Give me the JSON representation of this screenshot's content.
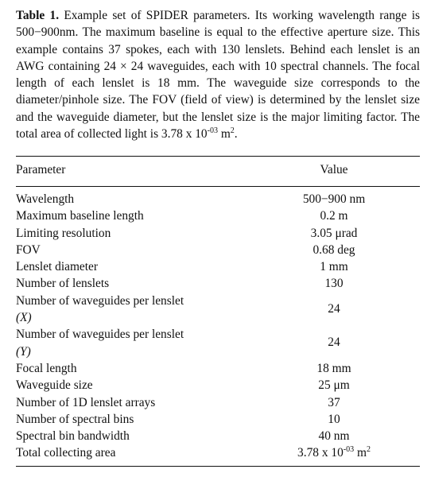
{
  "caption": {
    "label": "Table 1.",
    "text_main": " Example set of SPIDER parameters. Its working wavelength range is 500−900nm. The maximum baseline is equal to the effective aperture size. This example contains 37 spokes, each with 130 lenslets. Behind each lenslet is an AWG containing 24 × 24 waveguides, each with 10 spectral channels. The focal length of each lenslet is 18 mm. The waveguide size corresponds to the diameter/pinhole size. The FOV (field of view) is determined by the lenslet size and the waveguide diameter, but the lenslet size is the major limiting factor. The total area of collected light is 3.78 x 10",
    "exp1": "-03",
    "unit": " m",
    "exp2": "2",
    "end": "."
  },
  "table": {
    "headers": {
      "parameter": "Parameter",
      "value": "Value"
    },
    "rows": [
      {
        "parameter": "Wavelength",
        "value": "500−900 nm"
      },
      {
        "parameter": "Maximum baseline length",
        "value": "0.2 m"
      },
      {
        "parameter": "Limiting resolution",
        "value": "3.05 μrad"
      },
      {
        "parameter": "FOV",
        "value": "0.68 deg"
      },
      {
        "parameter": "Lenslet diameter",
        "value": "1 mm"
      },
      {
        "parameter": "Number of lenslets",
        "value": "130"
      },
      {
        "parameter": "Number of waveguides per lenslet",
        "param_sub": "(X)",
        "value": "24"
      },
      {
        "parameter": "Number of waveguides per lenslet",
        "param_sub": "(Y)",
        "value": "24"
      },
      {
        "parameter": "Focal length",
        "value": "18 mm"
      },
      {
        "parameter": "Waveguide size",
        "value": "25 μm"
      },
      {
        "parameter": "Number of 1D lenslet arrays",
        "value": "37"
      },
      {
        "parameter": "Number of spectral bins",
        "value": "10"
      },
      {
        "parameter": "Spectral bin bandwidth",
        "value": "40 nm"
      },
      {
        "parameter": "Total collecting area",
        "value": "3.78 x 10",
        "value_exp1": "-03",
        "value_unit": " m",
        "value_exp2": "2"
      }
    ]
  }
}
